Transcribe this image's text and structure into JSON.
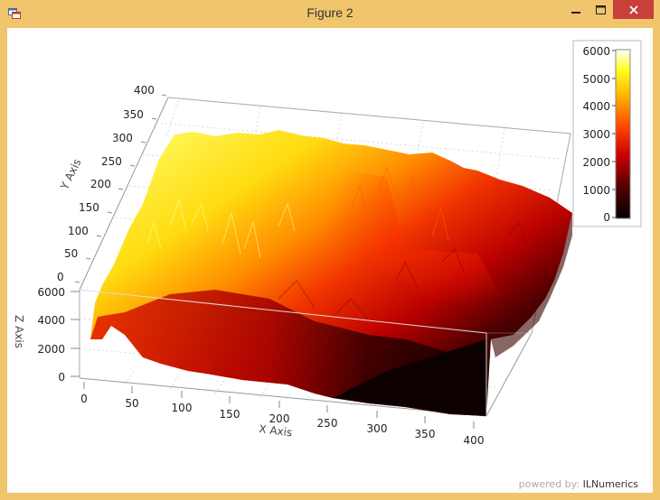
{
  "window": {
    "title": "Figure 2"
  },
  "icons": {
    "app": "app-window-icon",
    "minimize": "minimize-icon",
    "maximize": "maximize-icon",
    "close": "close-icon"
  },
  "colors": {
    "frame": "#f0c56b",
    "close": "#c7403a",
    "colormap": [
      "#000000",
      "#8b0000",
      "#ff0000",
      "#ff8c00",
      "#ffff00",
      "#ffffff"
    ]
  },
  "footer": {
    "powered_label": "powered by:",
    "brand": "ILNumerics"
  },
  "chart_data": {
    "type": "surface",
    "colormap": "hot",
    "x_label": "X Axis",
    "y_label": "Y Axis",
    "z_label": "Z Axis",
    "x_ticks": [
      "0",
      "50",
      "100",
      "150",
      "200",
      "250",
      "300",
      "350",
      "400"
    ],
    "y_ticks": [
      "0",
      "50",
      "100",
      "150",
      "200",
      "250",
      "300",
      "350",
      "400"
    ],
    "z_ticks": [
      "0",
      "2000",
      "4000",
      "6000"
    ],
    "xlim": [
      0,
      400
    ],
    "ylim": [
      0,
      400
    ],
    "zlim": [
      0,
      6000
    ],
    "grid": true,
    "colorbar": {
      "ticks": [
        "0",
        "1000",
        "2000",
        "3000",
        "4000",
        "5000",
        "6000"
      ],
      "range": [
        0,
        6000
      ],
      "placement": "top-right"
    }
  }
}
